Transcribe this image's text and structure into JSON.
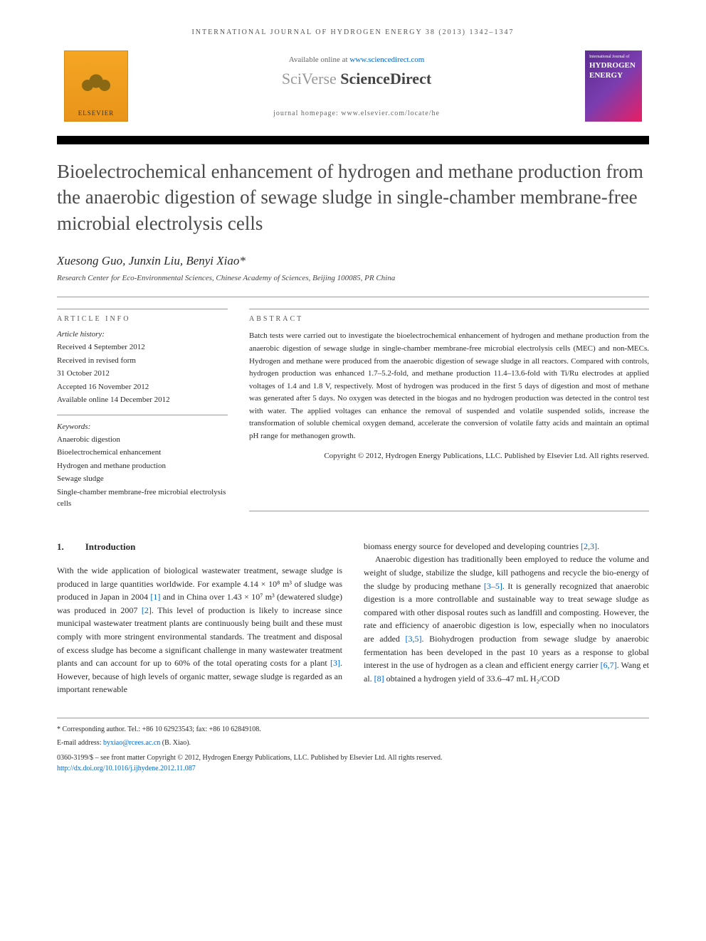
{
  "journal_header": "INTERNATIONAL JOURNAL OF HYDROGEN ENERGY 38 (2013) 1342–1347",
  "elsevier_label": "ELSEVIER",
  "available_text_pre": "Available online at ",
  "available_link": "www.sciencedirect.com",
  "sciverse_pre": "SciVerse ",
  "sciverse_bold": "ScienceDirect",
  "homepage_text": "journal homepage: www.elsevier.com/locate/he",
  "cover_small": "International Journal of",
  "cover_word1": "HYDROGEN",
  "cover_word2": "ENERGY",
  "title": "Bioelectrochemical enhancement of hydrogen and methane production from the anaerobic digestion of sewage sludge in single-chamber membrane-free microbial electrolysis cells",
  "authors": "Xuesong Guo, Junxin Liu, Benyi Xiao*",
  "affiliation": "Research Center for Eco-Environmental Sciences, Chinese Academy of Sciences, Beijing 100085, PR China",
  "info_heading": "ARTICLE INFO",
  "history_label": "Article history:",
  "history": {
    "received": "Received 4 September 2012",
    "revised1": "Received in revised form",
    "revised2": "31 October 2012",
    "accepted": "Accepted 16 November 2012",
    "online": "Available online 14 December 2012"
  },
  "keywords_label": "Keywords:",
  "keywords": [
    "Anaerobic digestion",
    "Bioelectrochemical enhancement",
    "Hydrogen and methane production",
    "Sewage sludge",
    "Single-chamber membrane-free microbial electrolysis cells"
  ],
  "abstract_heading": "ABSTRACT",
  "abstract_text": "Batch tests were carried out to investigate the bioelectrochemical enhancement of hydrogen and methane production from the anaerobic digestion of sewage sludge in single-chamber membrane-free microbial electrolysis cells (MEC) and non-MECs. Hydrogen and methane were produced from the anaerobic digestion of sewage sludge in all reactors. Compared with controls, hydrogen production was enhanced 1.7–5.2-fold, and methane production 11.4–13.6-fold with Ti/Ru electrodes at applied voltages of 1.4 and 1.8 V, respectively. Most of hydrogen was produced in the first 5 days of digestion and most of methane was generated after 5 days. No oxygen was detected in the biogas and no hydrogen production was detected in the control test with water. The applied voltages can enhance the removal of suspended and volatile suspended solids, increase the transformation of soluble chemical oxygen demand, accelerate the conversion of volatile fatty acids and maintain an optimal pH range for methanogen growth.",
  "copyright": "Copyright © 2012, Hydrogen Energy Publications, LLC. Published by Elsevier Ltd. All rights reserved.",
  "section1_num": "1.",
  "section1_title": "Introduction",
  "col1_p1_a": "With the wide application of biological wastewater treatment, sewage sludge is produced in large quantities worldwide. For example 4.14 × 10⁸ m³ of sludge was produced in Japan in 2004 ",
  "col1_ref1": "[1]",
  "col1_p1_b": " and in China over 1.43 × 10⁷ m³ (dewatered sludge) was produced in 2007 ",
  "col1_ref2": "[2]",
  "col1_p1_c": ". This level of production is likely to increase since municipal wastewater treatment plants are continuously being built and these must comply with more stringent environmental standards. The treatment and disposal of excess sludge has become a significant challenge in many wastewater treatment plants and can account for up to 60% of the total operating costs for a plant ",
  "col1_ref3": "[3]",
  "col1_p1_d": ". However, because of high levels of organic matter, sewage sludge is regarded as an important renewable",
  "col2_p1_a": "biomass energy source for developed and developing countries ",
  "col2_ref23": "[2,3]",
  "col2_p1_b": ".",
  "col2_p2_a": "Anaerobic digestion has traditionally been employed to reduce the volume and weight of sludge, stabilize the sludge, kill pathogens and recycle the bio-energy of the sludge by producing methane ",
  "col2_ref35": "[3–5]",
  "col2_p2_b": ". It is generally recognized that anaerobic digestion is a more controllable and sustainable way to treat sewage sludge as compared with other disposal routes such as landfill and composting. However, the rate and efficiency of anaerobic digestion is low, especially when no inoculators are added ",
  "col2_ref35b": "[3,5]",
  "col2_p2_c": ". Biohydrogen production from sewage sludge by anaerobic fermentation has been developed in the past 10 years as a response to global interest in the use of hydrogen as a clean and efficient energy carrier ",
  "col2_ref67": "[6,7]",
  "col2_p2_d": ". Wang et al. ",
  "col2_ref8": "[8]",
  "col2_p2_e": " obtained a hydrogen yield of 33.6–47 mL H₂/COD",
  "footer_corresponding": "* Corresponding author. Tel.: +86 10 62923543; fax: +86 10 62849108.",
  "footer_email_label": "E-mail address: ",
  "footer_email": "byxiao@rcees.ac.cn",
  "footer_email_post": " (B. Xiao).",
  "footer_issn": "0360-3199/$ – see front matter Copyright © 2012, Hydrogen Energy Publications, LLC. Published by Elsevier Ltd. All rights reserved.",
  "footer_doi": "http://dx.doi.org/10.1016/j.ijhydene.2012.11.087",
  "colors": {
    "link": "#0066cc",
    "title_gray": "#4a4a4a",
    "text": "#2a2a2a",
    "elsevier_orange": "#f5a623",
    "cover_purple": "#5b2d8f"
  },
  "typography": {
    "title_fontsize": 27,
    "authors_fontsize": 17,
    "body_fontsize": 12,
    "info_fontsize": 11
  }
}
